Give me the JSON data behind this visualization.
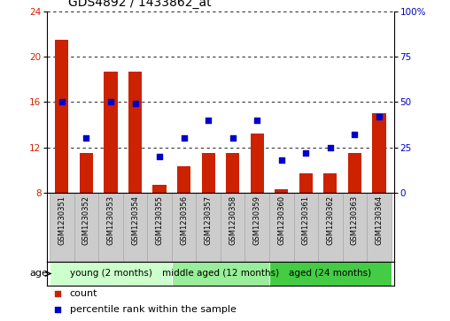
{
  "title": "GDS4892 / 1433862_at",
  "samples": [
    "GSM1230351",
    "GSM1230352",
    "GSM1230353",
    "GSM1230354",
    "GSM1230355",
    "GSM1230356",
    "GSM1230357",
    "GSM1230358",
    "GSM1230359",
    "GSM1230360",
    "GSM1230361",
    "GSM1230362",
    "GSM1230363",
    "GSM1230364"
  ],
  "counts": [
    21.5,
    11.5,
    18.7,
    18.7,
    8.7,
    10.3,
    11.5,
    11.5,
    13.2,
    8.3,
    9.7,
    9.7,
    11.5,
    15.0
  ],
  "percentiles": [
    50,
    30,
    50,
    49,
    20,
    30,
    40,
    30,
    40,
    18,
    22,
    25,
    32,
    42
  ],
  "ylim_left": [
    8,
    24
  ],
  "ylim_right": [
    0,
    100
  ],
  "yticks_left": [
    8,
    12,
    16,
    20,
    24
  ],
  "yticks_right": [
    0,
    25,
    50,
    75,
    100
  ],
  "bar_color": "#cc2200",
  "dot_color": "#0000cc",
  "bar_bottom": 8,
  "groups": [
    {
      "label": "young (2 months)",
      "start": 0,
      "end": 5
    },
    {
      "label": "middle aged (12 months)",
      "start": 5,
      "end": 9
    },
    {
      "label": "aged (24 months)",
      "start": 9,
      "end": 14
    }
  ],
  "group_colors": [
    "#ccffcc",
    "#99ee99",
    "#44cc44"
  ],
  "legend_count_label": "count",
  "legend_pct_label": "percentile rank within the sample",
  "age_label": "age",
  "title_fontsize": 10,
  "tick_fontsize": 7.5,
  "group_label_fontsize": 7.5,
  "legend_fontsize": 8,
  "label_box_color": "#cccccc",
  "label_box_edge": "#aaaaaa"
}
